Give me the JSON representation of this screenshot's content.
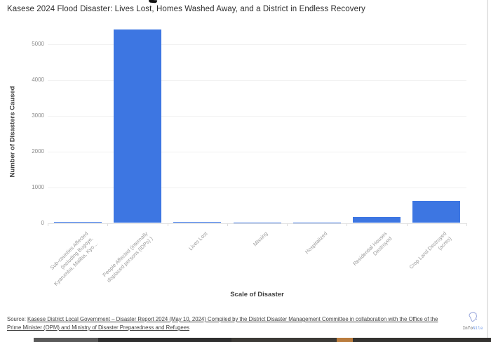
{
  "page": {
    "top_partial_glyph": "y",
    "title": "Kasese 2024 Flood Disaster: Lives Lost, Homes Washed Away, and a District in Endless Recovery"
  },
  "chart_data": {
    "type": "bar",
    "title": "Kasese 2024 Flood Disaster: Lives Lost, Homes Washed Away, and a District in Endless Recovery",
    "xlabel": "Scale of Disaster",
    "ylabel": "Number of Disasters Caused",
    "ylim": [
      0,
      5500
    ],
    "yticks": [
      0,
      1000,
      2000,
      3000,
      4000,
      5000
    ],
    "grid": true,
    "legend_position": "none",
    "bar_color": "#3D76E2",
    "categories": [
      "Sub-counties Affected\n(including Bugoye,\nKyarumba, Maliba, Kyo…",
      "People Affected (internally\ndisplaced persons (IDPs) )",
      "Lives Lost",
      "Missing",
      "Hospitalized",
      "Residential Houses\nDestroyed",
      "Crop Land Destroyed\n(acres)"
    ],
    "values": [
      35,
      5400,
      30,
      3,
      12,
      160,
      620
    ]
  },
  "footer": {
    "source_prefix": "Source: ",
    "source_link_text": "Kasese District Local Government – Disaster Report 2024 (May 10, 2024) Compiled by the District Disaster Management Committee in collaboration with the Office of the Prime Minister (OPM) and Ministry of Disaster Preparedness and Refugees",
    "logo_info": "Info",
    "logo_nile": "Nile",
    "logo_icon": "africa-outline-icon"
  }
}
